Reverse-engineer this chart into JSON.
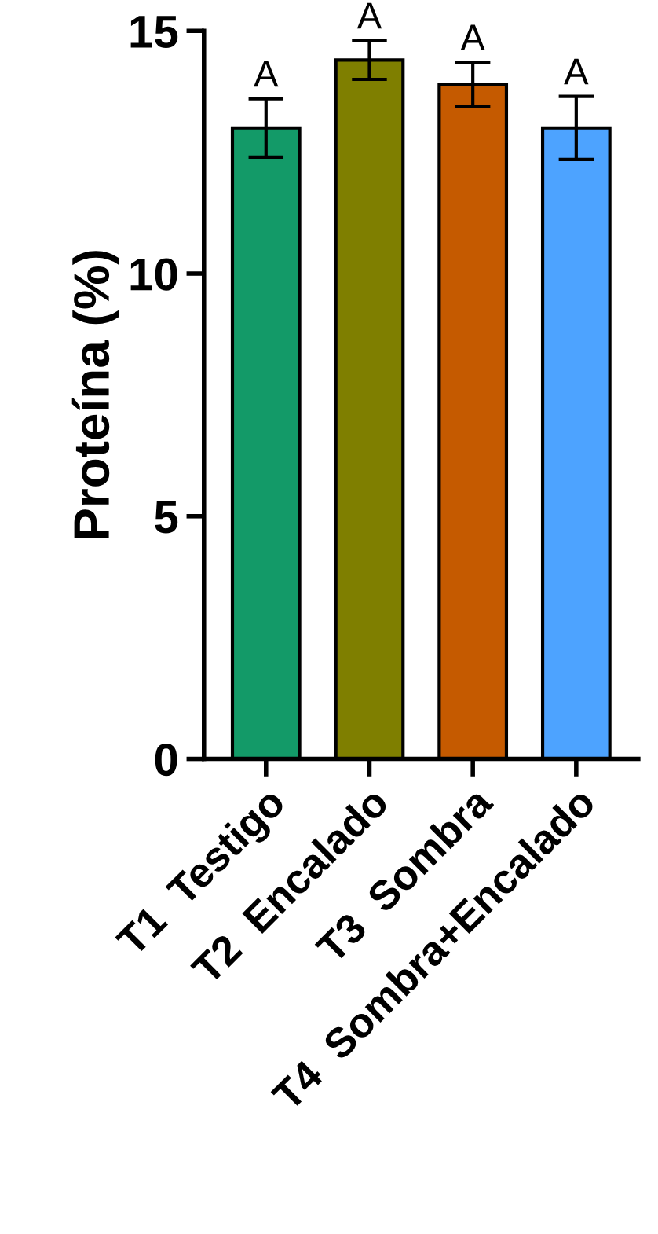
{
  "chart_data": {
    "type": "bar",
    "ylabel": "Proteína (%)",
    "categories": [
      "T1  Testigo",
      "T2  Encalado",
      "T3  Sombra",
      "T4  Sombra+Encalado"
    ],
    "values": [
      13.0,
      14.4,
      13.9,
      13.0
    ],
    "errors": [
      0.6,
      0.4,
      0.45,
      0.65
    ],
    "colors": [
      "#139a68",
      "#7f7f00",
      "#c55a00",
      "#4da3ff"
    ],
    "ylim": [
      0,
      15
    ],
    "yticks": [
      0,
      5,
      10,
      15
    ],
    "grid": false,
    "annotations": [
      {
        "text": "A",
        "x": "T1  Testigo",
        "y": 13.6
      },
      {
        "text": "A",
        "x": "T2  Encalado",
        "y": 14.8
      },
      {
        "text": "A",
        "x": "T3  Sombra",
        "y": 14.35
      },
      {
        "text": "A",
        "x": "T4  Sombra+Encalado",
        "y": 13.65
      }
    ]
  }
}
